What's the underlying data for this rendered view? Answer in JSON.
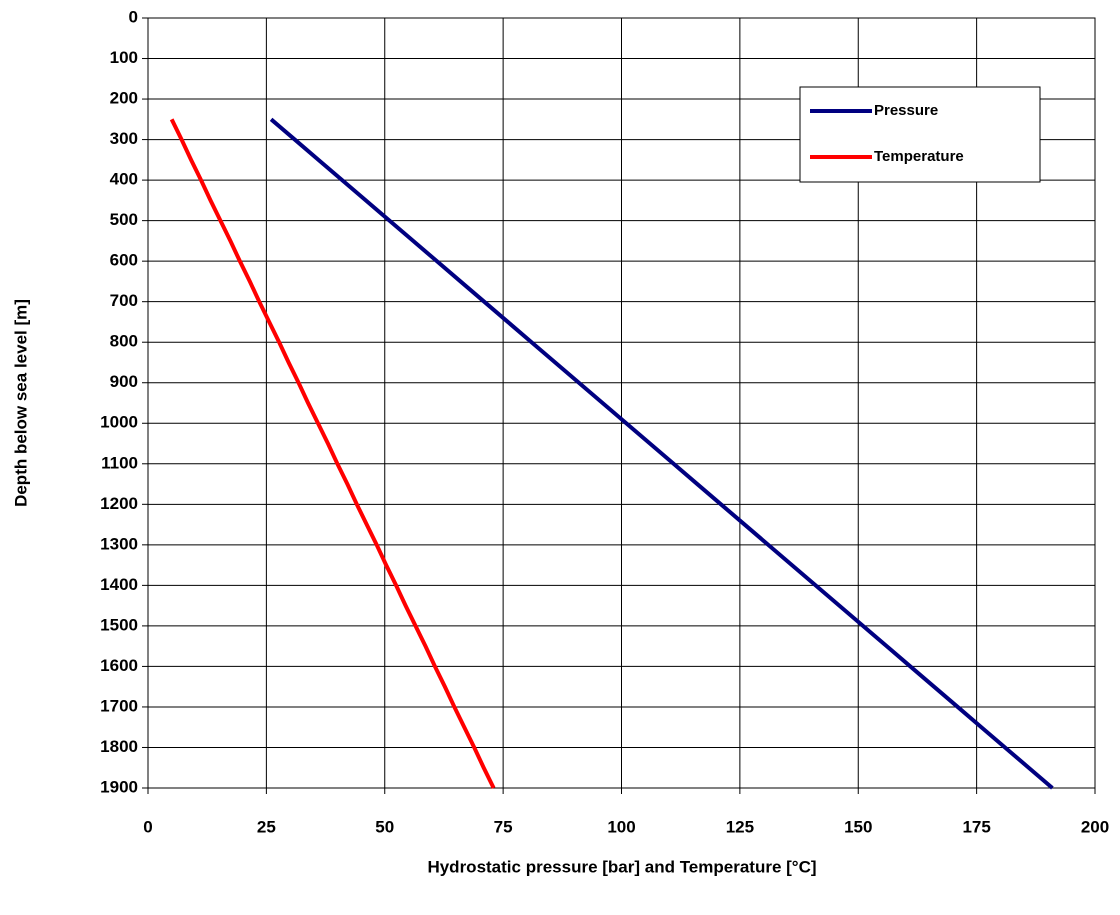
{
  "chart_data": {
    "type": "line",
    "x_label": "Hydrostatic pressure [bar] and Temperature [°C]",
    "y_label": "Depth below sea level [m]",
    "y": [
      250,
      300,
      350,
      400,
      450,
      500,
      550,
      600,
      650,
      700,
      750,
      800,
      850,
      900,
      950,
      1000,
      1050,
      1100,
      1150,
      1200,
      1250,
      1300,
      1350,
      1400,
      1450,
      1500,
      1550,
      1600,
      1650,
      1700,
      1750,
      1800,
      1850,
      1900
    ],
    "series": [
      {
        "name": "Pressure",
        "color": "#000080",
        "values": [
          26,
          31,
          36,
          41,
          46,
          51,
          56,
          61,
          66,
          71,
          76,
          81,
          86,
          91,
          96,
          101,
          106,
          111,
          116,
          121,
          126,
          131,
          136,
          141,
          146,
          151,
          156,
          161,
          166,
          171,
          176,
          181,
          186,
          191
        ]
      },
      {
        "name": "Temperature",
        "color": "#ff0000",
        "values": [
          5,
          7.1,
          9.1,
          11.2,
          13.2,
          15.3,
          17.4,
          19.4,
          21.5,
          23.5,
          25.6,
          27.7,
          29.7,
          31.8,
          33.8,
          35.9,
          38,
          40,
          42.1,
          44.1,
          46.2,
          48.3,
          50.3,
          52.4,
          54.4,
          56.5,
          58.6,
          60.6,
          62.7,
          64.7,
          66.8,
          68.9,
          70.9,
          73
        ]
      }
    ],
    "xlim": [
      0,
      200
    ],
    "xticks": [
      0,
      25,
      50,
      75,
      100,
      125,
      150,
      175,
      200
    ],
    "ylim": [
      0,
      1900
    ],
    "yticks": [
      0,
      100,
      200,
      300,
      400,
      500,
      600,
      700,
      800,
      900,
      1000,
      1100,
      1200,
      1300,
      1400,
      1500,
      1600,
      1700,
      1800,
      1900
    ],
    "y_inverted": true,
    "grid": true,
    "legend": "upper right"
  }
}
